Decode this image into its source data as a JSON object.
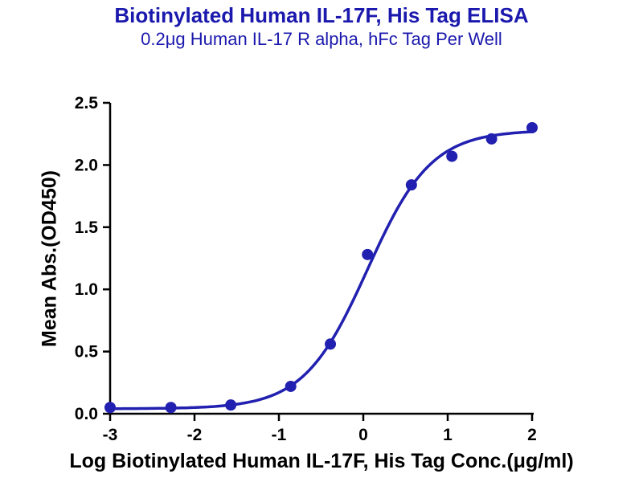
{
  "chart_data": {
    "type": "scatter",
    "title": "Biotinylated Human IL-17F, His Tag ELISA",
    "subtitle": "0.2μg Human IL-17 R alpha, hFc Tag Per Well",
    "xlabel": "Log Biotinylated Human IL-17F, His Tag Conc.(μg/ml)",
    "ylabel": "Mean Abs.(OD450)",
    "xlim": [
      -3,
      2
    ],
    "ylim": [
      0,
      2.5
    ],
    "x_ticks": [
      -3,
      -2,
      -1,
      0,
      1,
      2
    ],
    "x_tick_labels": [
      "-3",
      "-2",
      "-1",
      "0",
      "1",
      "2"
    ],
    "y_ticks": [
      0,
      0.5,
      1,
      1.5,
      2,
      2.5
    ],
    "y_tick_labels": [
      "0.0",
      "0.5",
      "1.0",
      "1.5",
      "2.0",
      "2.5"
    ],
    "grid": false,
    "legend": null,
    "points": {
      "x": [
        -3,
        -2.28,
        -1.57,
        -0.86,
        -0.39,
        0.05,
        0.57,
        1.05,
        1.52,
        2
      ],
      "y": [
        0.05,
        0.05,
        0.07,
        0.22,
        0.56,
        1.28,
        1.84,
        2.07,
        2.21,
        2.3
      ]
    },
    "fit_curve": {
      "model": "4PL-sigmoid",
      "bottom": 0.04,
      "top": 2.28,
      "logEC50": 0.05,
      "hillslope": 1.15
    },
    "colors": {
      "curve": "#2120b0",
      "point": "#2120b0",
      "axis": "#000000",
      "title": "#1b19ad"
    }
  }
}
